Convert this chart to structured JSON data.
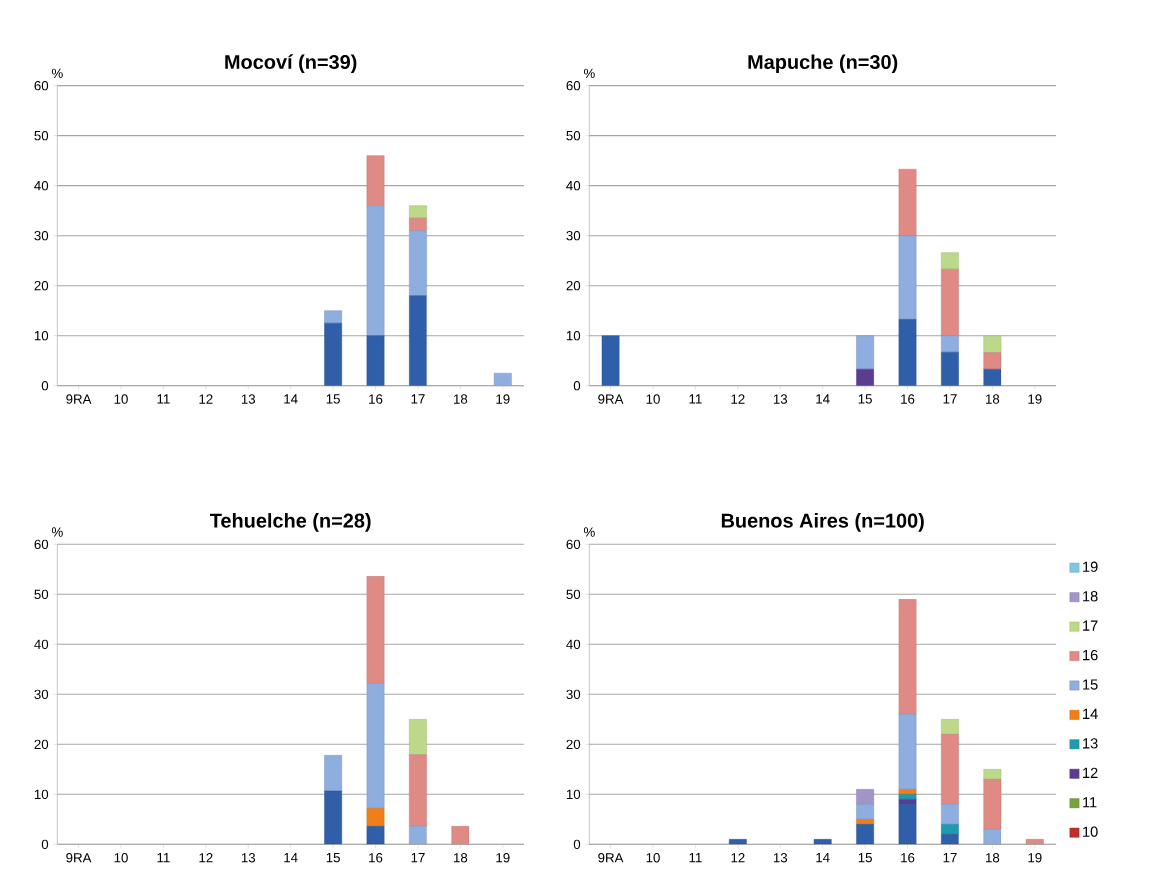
{
  "chart_data": [
    {
      "type": "bar",
      "stacked": true,
      "title": "Mocoví (n=39)",
      "ylabel": "%",
      "categories": [
        "9RA",
        "10",
        "11",
        "12",
        "13",
        "14",
        "15",
        "16",
        "17",
        "18",
        "19"
      ],
      "ylim": [
        0,
        60
      ],
      "yticks": [
        0,
        10,
        20,
        30,
        40,
        50,
        60
      ],
      "grid": "y",
      "series": [
        {
          "color": "#2e5fa8",
          "values": [
            0,
            0,
            0,
            0,
            0,
            0,
            12.5,
            10,
            18,
            0,
            0
          ]
        },
        {
          "color": "#8eaee0",
          "values": [
            0,
            0,
            0,
            0,
            0,
            0,
            2.5,
            26,
            13,
            0,
            2.5
          ]
        },
        {
          "color": "#e08a86",
          "values": [
            0,
            0,
            0,
            0,
            0,
            0,
            0,
            10,
            2.5,
            0,
            0
          ]
        },
        {
          "color": "#bcd98a",
          "values": [
            0,
            0,
            0,
            0,
            0,
            0,
            0,
            0,
            2.5,
            0,
            0
          ]
        }
      ]
    },
    {
      "type": "bar",
      "stacked": true,
      "title": "Mapuche (n=30)",
      "ylabel": "%",
      "categories": [
        "9RA",
        "10",
        "11",
        "12",
        "13",
        "14",
        "15",
        "16",
        "17",
        "18",
        "19"
      ],
      "ylim": [
        0,
        60
      ],
      "yticks": [
        0,
        10,
        20,
        30,
        40,
        50,
        60
      ],
      "grid": "y",
      "series": [
        {
          "color": "#2e5fa8",
          "values": [
            10,
            0,
            0,
            0,
            0,
            0,
            0,
            13.3,
            6.7,
            3.3,
            0
          ]
        },
        {
          "color": "#5b3c91",
          "values": [
            0,
            0,
            0,
            0,
            0,
            0,
            3.3,
            0,
            0,
            0,
            0
          ]
        },
        {
          "color": "#8eaee0",
          "values": [
            0,
            0,
            0,
            0,
            0,
            0,
            6.7,
            16.7,
            3.3,
            0,
            0
          ]
        },
        {
          "color": "#e08a86",
          "values": [
            0,
            0,
            0,
            0,
            0,
            0,
            0,
            13.3,
            13.3,
            3.3,
            0
          ]
        },
        {
          "color": "#bcd98a",
          "values": [
            0,
            0,
            0,
            0,
            0,
            0,
            0,
            0,
            3.3,
            3.3,
            0
          ]
        }
      ]
    },
    {
      "type": "bar",
      "stacked": true,
      "title": "Tehuelche (n=28)",
      "ylabel": "%",
      "categories": [
        "9RA",
        "10",
        "11",
        "12",
        "13",
        "14",
        "15",
        "16",
        "17",
        "18",
        "19"
      ],
      "ylim": [
        0,
        60
      ],
      "yticks": [
        0,
        10,
        20,
        30,
        40,
        50,
        60
      ],
      "grid": "y",
      "series": [
        {
          "color": "#2e5fa8",
          "values": [
            0,
            0,
            0,
            0,
            0,
            0,
            10.7,
            3.6,
            0,
            0,
            0
          ]
        },
        {
          "color": "#f07f19",
          "values": [
            0,
            0,
            0,
            0,
            0,
            0,
            0,
            3.6,
            0,
            0,
            0
          ]
        },
        {
          "color": "#8eaee0",
          "values": [
            0,
            0,
            0,
            0,
            0,
            0,
            7.1,
            25,
            3.6,
            0,
            0
          ]
        },
        {
          "color": "#e08a86",
          "values": [
            0,
            0,
            0,
            0,
            0,
            0,
            0,
            21.4,
            14.3,
            3.6,
            0
          ]
        },
        {
          "color": "#bcd98a",
          "values": [
            0,
            0,
            0,
            0,
            0,
            0,
            0,
            0,
            7.1,
            0,
            0
          ]
        }
      ]
    },
    {
      "type": "bar",
      "stacked": true,
      "title": "Buenos Aires (n=100)",
      "ylabel": "%",
      "categories": [
        "9RA",
        "10",
        "11",
        "12",
        "13",
        "14",
        "15",
        "16",
        "17",
        "18",
        "19"
      ],
      "ylim": [
        0,
        60
      ],
      "yticks": [
        0,
        10,
        20,
        30,
        40,
        50,
        60
      ],
      "grid": "y",
      "legend": "right",
      "series": [
        {
          "color": "#2e5fa8",
          "values": [
            0,
            0,
            0,
            1,
            0,
            1,
            4,
            8,
            2,
            0,
            0
          ]
        },
        {
          "name": "10",
          "color": "#c0302b",
          "values": [
            0,
            0,
            0,
            0,
            0,
            0,
            0,
            0,
            0,
            0,
            0
          ]
        },
        {
          "name": "11",
          "color": "#77a33b",
          "values": [
            0,
            0,
            0,
            0,
            0,
            0,
            0,
            0,
            0,
            0,
            0
          ]
        },
        {
          "name": "12",
          "color": "#5b3c91",
          "values": [
            0,
            0,
            0,
            0,
            0,
            0,
            0,
            1,
            0,
            0,
            0
          ]
        },
        {
          "name": "13",
          "color": "#1f9bb0",
          "values": [
            0,
            0,
            0,
            0,
            0,
            0,
            0,
            1,
            2,
            0,
            0
          ]
        },
        {
          "name": "14",
          "color": "#f07f19",
          "values": [
            0,
            0,
            0,
            0,
            0,
            0,
            1,
            1,
            0,
            0,
            0
          ]
        },
        {
          "name": "15",
          "color": "#8eaee0",
          "values": [
            0,
            0,
            0,
            0,
            0,
            0,
            3,
            15,
            4,
            3,
            0
          ]
        },
        {
          "name": "16",
          "color": "#e08a86",
          "values": [
            0,
            0,
            0,
            0,
            0,
            0,
            0,
            23,
            14,
            10,
            1
          ]
        },
        {
          "name": "17",
          "color": "#bcd98a",
          "values": [
            0,
            0,
            0,
            0,
            0,
            0,
            0,
            0,
            3,
            2,
            0
          ]
        },
        {
          "name": "18",
          "color": "#a394c8",
          "values": [
            0,
            0,
            0,
            0,
            0,
            0,
            3,
            0,
            0,
            0,
            0
          ]
        },
        {
          "name": "19",
          "color": "#7fc7de",
          "values": [
            0,
            0,
            0,
            0,
            0,
            0,
            0,
            0,
            0,
            0,
            0
          ]
        }
      ]
    }
  ]
}
